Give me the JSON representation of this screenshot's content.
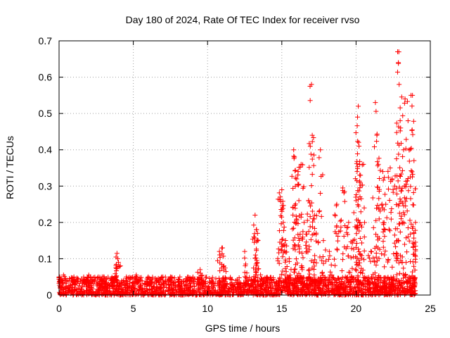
{
  "chart_data": {
    "type": "scatter",
    "title": "Day 180 of 2024, Rate Of TEC Index for receiver rvso",
    "xlabel": "GPS time / hours",
    "ylabel": "ROTI / TECUs",
    "xlim": [
      0,
      25
    ],
    "ylim": [
      0,
      0.7
    ],
    "x_ticks": [
      0,
      5,
      10,
      15,
      20,
      25
    ],
    "x_tick_labels": [
      "0",
      "5",
      "10",
      "15",
      "20",
      "25"
    ],
    "y_ticks": [
      0,
      0.1,
      0.2,
      0.3,
      0.4,
      0.5,
      0.6,
      0.7
    ],
    "y_tick_labels": [
      "0",
      "0.1",
      "0.2",
      "0.3",
      "0.4",
      "0.5",
      "0.6",
      "0.7"
    ],
    "grid": true,
    "marker": "+",
    "marker_color": "#ff0000",
    "baseline": {
      "x_range": [
        0,
        24
      ],
      "y_typical_range": [
        0.0,
        0.05
      ]
    },
    "series": [
      {
        "points": [
          [
            0.05,
            0.05
          ],
          [
            0.3,
            0.055
          ],
          [
            1.0,
            0.05
          ],
          [
            2.0,
            0.055
          ],
          [
            3.0,
            0.05
          ],
          [
            3.9,
            0.115
          ],
          [
            3.95,
            0.1
          ],
          [
            4.0,
            0.09
          ],
          [
            5.2,
            0.055
          ],
          [
            6.0,
            0.05
          ],
          [
            7.5,
            0.05
          ],
          [
            9.5,
            0.07
          ],
          [
            10.8,
            0.12
          ],
          [
            11.0,
            0.13
          ],
          [
            11.1,
            0.08
          ],
          [
            12.5,
            0.12
          ],
          [
            13.2,
            0.22
          ],
          [
            13.3,
            0.18
          ],
          [
            13.4,
            0.15
          ],
          [
            14.9,
            0.27
          ],
          [
            15.0,
            0.29
          ],
          [
            15.1,
            0.2
          ],
          [
            15.2,
            0.14
          ],
          [
            15.5,
            0.1
          ],
          [
            15.8,
            0.4
          ],
          [
            15.85,
            0.38
          ],
          [
            16.0,
            0.32
          ],
          [
            16.1,
            0.34
          ],
          [
            16.3,
            0.36
          ],
          [
            16.5,
            0.2
          ],
          [
            16.8,
            0.26
          ],
          [
            17.0,
            0.58
          ],
          [
            17.05,
            0.44
          ],
          [
            17.2,
            0.22
          ],
          [
            17.6,
            0.4
          ],
          [
            17.8,
            0.15
          ],
          [
            18.2,
            0.12
          ],
          [
            18.7,
            0.25
          ],
          [
            19.1,
            0.295
          ],
          [
            19.5,
            0.2
          ],
          [
            19.8,
            0.15
          ],
          [
            20.0,
            0.26
          ],
          [
            20.1,
            0.49
          ],
          [
            20.15,
            0.52
          ],
          [
            20.2,
            0.41
          ],
          [
            20.3,
            0.33
          ],
          [
            20.5,
            0.36
          ],
          [
            21.0,
            0.12
          ],
          [
            21.3,
            0.53
          ],
          [
            21.4,
            0.44
          ],
          [
            21.5,
            0.36
          ],
          [
            21.8,
            0.34
          ],
          [
            22.0,
            0.25
          ],
          [
            22.3,
            0.35
          ],
          [
            22.6,
            0.3
          ],
          [
            22.8,
            0.67
          ],
          [
            22.85,
            0.64
          ],
          [
            22.9,
            0.58
          ],
          [
            23.0,
            0.46
          ],
          [
            23.2,
            0.4
          ],
          [
            23.3,
            0.54
          ],
          [
            23.5,
            0.48
          ],
          [
            23.7,
            0.55
          ],
          [
            23.8,
            0.55
          ],
          [
            23.9,
            0.37
          ],
          [
            24.0,
            0.2
          ]
        ]
      }
    ]
  }
}
